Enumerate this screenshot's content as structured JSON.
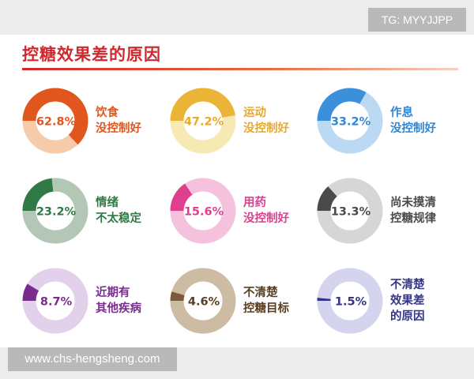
{
  "watermark": "TG: MYYJJPP",
  "footer_url": "www.chs-hengsheng.com",
  "chart_data": {
    "type": "donut-grid",
    "title": "控糖效果差的原因",
    "items": [
      {
        "value": 62.8,
        "label": "62.8%",
        "text_lines": [
          "饮食",
          "没控制好"
        ],
        "color": "#e0561d",
        "track_color": "#f6cba9",
        "text_color": "#e0561d"
      },
      {
        "value": 47.2,
        "label": "47.2%",
        "text_lines": [
          "运动",
          "没控制好"
        ],
        "color": "#ebb437",
        "track_color": "#f7e9b4",
        "text_color": "#e8a92a"
      },
      {
        "value": 33.2,
        "label": "33.2%",
        "text_lines": [
          "作息",
          "没控制好"
        ],
        "color": "#3c8fdb",
        "track_color": "#bcd9f4",
        "text_color": "#2f86d6"
      },
      {
        "value": 23.2,
        "label": "23.2%",
        "text_lines": [
          "情绪",
          "不太稳定"
        ],
        "color": "#2f7a45",
        "track_color": "#b3c7b7",
        "text_color": "#2f7a45"
      },
      {
        "value": 15.6,
        "label": "15.6%",
        "text_lines": [
          "用药",
          "没控制好"
        ],
        "color": "#df3f8f",
        "track_color": "#f4c2dc",
        "text_color": "#df3f8f"
      },
      {
        "value": 13.3,
        "label": "13.3%",
        "text_lines": [
          "尚未摸清",
          "控糖规律"
        ],
        "color": "#4a4a4a",
        "track_color": "#d6d6d6",
        "text_color": "#4a4a4a"
      },
      {
        "value": 8.7,
        "label": "8.7%",
        "text_lines": [
          "近期有",
          "其他疾病"
        ],
        "color": "#7a2c8e",
        "track_color": "#e3d0ea",
        "text_color": "#7a2c8e"
      },
      {
        "value": 4.6,
        "label": "4.6%",
        "text_lines": [
          "不清楚",
          "控糖目标"
        ],
        "color": "#7a5a3a",
        "track_color": "#cdbca4",
        "text_color": "#5a3e22"
      },
      {
        "value": 1.5,
        "label": "1.5%",
        "text_lines": [
          "不清楚",
          "效果差",
          "的原因"
        ],
        "color": "#33348a",
        "track_color": "#d4d4ee",
        "text_color": "#33348a"
      }
    ]
  }
}
